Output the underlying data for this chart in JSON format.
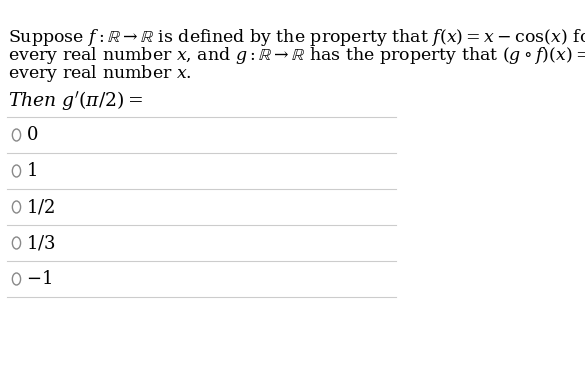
{
  "bg_color": "#ffffff",
  "text_color": "#000000",
  "line_color": "#cccccc",
  "paragraph_text": "Suppose $f: \\mathbb{R} \\rightarrow \\mathbb{R}$ is defined by the property that $f(x) = x - \\cos(x)$ for\nevery real number $x$, and $g: \\mathbb{R} \\rightarrow \\mathbb{R}$ has the property that $(g \\circ f)(x) = x$ for\nevery real number $x$.",
  "question_text": "Then $g'(\\pi/2) =$",
  "options": [
    "$0$",
    "$1$",
    "$1/2$",
    "$1/3$",
    "$-1$"
  ],
  "font_size_body": 12.5,
  "font_size_question": 13.5,
  "font_size_options": 13.0
}
